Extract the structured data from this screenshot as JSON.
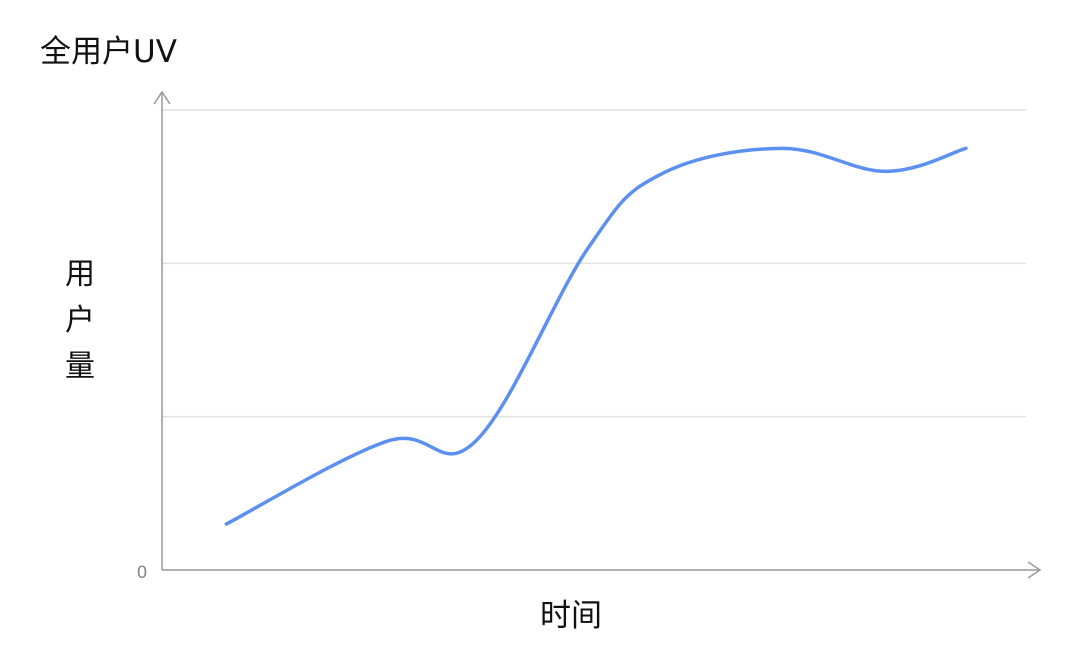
{
  "chart_data": {
    "type": "line",
    "title": "全用户UV",
    "xlabel": "时间",
    "ylabel": "用户量",
    "y_origin_label": "0",
    "x_tick_labels": [],
    "ylim": [
      0,
      3
    ],
    "grid": {
      "horizontal": true,
      "vertical": false
    },
    "legend": "none",
    "series": [
      {
        "color": "#5b8ff0",
        "x": [
          0.08,
          0.28,
          0.39,
          0.53,
          0.62,
          0.77,
          0.9,
          1.0
        ],
        "y": [
          0.3,
          0.84,
          0.84,
          2.1,
          2.58,
          2.75,
          2.6,
          2.75
        ]
      }
    ],
    "colors": {
      "line": "#5b8ff0",
      "axis": "#999999",
      "grid": "#e2e2e2",
      "zero_label": "#888888"
    }
  }
}
